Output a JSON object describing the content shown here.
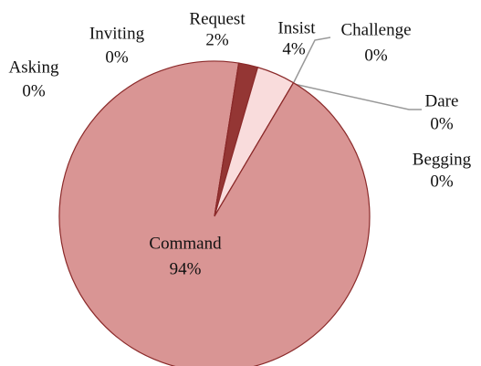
{
  "chart_data": {
    "type": "pie",
    "categories": [
      "Request",
      "Insist",
      "Challenge",
      "Dare",
      "Begging",
      "Command",
      "Asking",
      "Inviting"
    ],
    "values": [
      2,
      4,
      0,
      0,
      0,
      94,
      0,
      0
    ],
    "value_labels": [
      "2%",
      "4%",
      "0%",
      "0%",
      "0%",
      "94%",
      "0%",
      "0%"
    ],
    "colors": [
      "#943634",
      "#f9dcdc",
      "#e8b7b7",
      "#e8b7b7",
      "#e8b7b7",
      "#d99594",
      "#e8b7b7",
      "#e8b7b7"
    ]
  }
}
